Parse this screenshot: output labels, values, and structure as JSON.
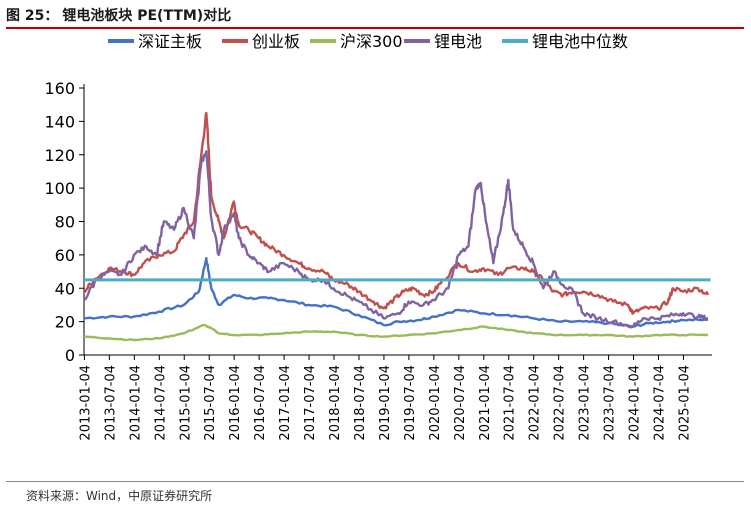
{
  "header": {
    "figure_number": "图 25：",
    "title": "锂电池板块 PE(TTM)对比"
  },
  "footer": {
    "source": "资料来源：Wind，中原证券研究所"
  },
  "chart_data": {
    "type": "line",
    "title": "锂电池板块 PE(TTM)对比",
    "xlabel": "",
    "ylabel": "",
    "ylim": [
      0,
      160
    ],
    "yticks": [
      0,
      20,
      40,
      60,
      80,
      100,
      120,
      140,
      160
    ],
    "x_range": [
      "2013-01-04",
      "2025-07-31"
    ],
    "xtick_labels": [
      "2013-01-04",
      "2013-07-04",
      "2014-01-04",
      "2014-07-04",
      "2015-01-04",
      "2015-07-04",
      "2016-01-04",
      "2016-07-04",
      "2017-01-04",
      "2017-07-04",
      "2018-01-04",
      "2018-07-04",
      "2019-01-04",
      "2019-07-04",
      "2020-01-04",
      "2020-07-04",
      "2021-01-04",
      "2021-07-04",
      "2022-01-04",
      "2022-07-04",
      "2023-01-04",
      "2023-07-04",
      "2024-01-04",
      "2024-07-04",
      "2025-01-04"
    ],
    "legend_position": "top",
    "series": [
      {
        "name": "深证主板",
        "color": "#4472c4",
        "points": [
          [
            2013.0,
            22
          ],
          [
            2013.5,
            23
          ],
          [
            2014.0,
            23
          ],
          [
            2014.5,
            26
          ],
          [
            2015.0,
            30
          ],
          [
            2015.3,
            38
          ],
          [
            2015.45,
            58
          ],
          [
            2015.55,
            40
          ],
          [
            2015.7,
            30
          ],
          [
            2016.0,
            36
          ],
          [
            2016.3,
            34
          ],
          [
            2016.7,
            34
          ],
          [
            2017.0,
            33
          ],
          [
            2017.5,
            30
          ],
          [
            2018.0,
            29
          ],
          [
            2018.5,
            24
          ],
          [
            2019.0,
            18
          ],
          [
            2019.3,
            20
          ],
          [
            2019.7,
            21
          ],
          [
            2020.0,
            23
          ],
          [
            2020.5,
            27
          ],
          [
            2021.0,
            25
          ],
          [
            2021.5,
            24
          ],
          [
            2022.0,
            22
          ],
          [
            2022.5,
            20
          ],
          [
            2023.0,
            20
          ],
          [
            2023.5,
            19
          ],
          [
            2024.0,
            17
          ],
          [
            2024.3,
            19
          ],
          [
            2024.7,
            20
          ],
          [
            2025.0,
            21
          ],
          [
            2025.5,
            21
          ]
        ]
      },
      {
        "name": "创业板",
        "color": "#c0504d",
        "points": [
          [
            2013.0,
            38
          ],
          [
            2013.2,
            45
          ],
          [
            2013.5,
            52
          ],
          [
            2013.8,
            50
          ],
          [
            2014.0,
            48
          ],
          [
            2014.2,
            55
          ],
          [
            2014.5,
            60
          ],
          [
            2014.8,
            62
          ],
          [
            2015.0,
            72
          ],
          [
            2015.2,
            80
          ],
          [
            2015.35,
            120
          ],
          [
            2015.45,
            145
          ],
          [
            2015.55,
            95
          ],
          [
            2015.7,
            80
          ],
          [
            2015.8,
            70
          ],
          [
            2016.0,
            92
          ],
          [
            2016.1,
            78
          ],
          [
            2016.3,
            75
          ],
          [
            2016.5,
            70
          ],
          [
            2016.7,
            65
          ],
          [
            2017.0,
            60
          ],
          [
            2017.3,
            55
          ],
          [
            2017.5,
            52
          ],
          [
            2017.8,
            50
          ],
          [
            2018.0,
            45
          ],
          [
            2018.3,
            42
          ],
          [
            2018.5,
            38
          ],
          [
            2018.8,
            32
          ],
          [
            2019.0,
            28
          ],
          [
            2019.2,
            33
          ],
          [
            2019.4,
            38
          ],
          [
            2019.6,
            40
          ],
          [
            2019.8,
            36
          ],
          [
            2020.0,
            38
          ],
          [
            2020.2,
            45
          ],
          [
            2020.5,
            55
          ],
          [
            2020.8,
            50
          ],
          [
            2021.0,
            52
          ],
          [
            2021.3,
            48
          ],
          [
            2021.5,
            52
          ],
          [
            2021.8,
            52
          ],
          [
            2022.0,
            50
          ],
          [
            2022.2,
            45
          ],
          [
            2022.4,
            38
          ],
          [
            2022.6,
            36
          ],
          [
            2022.8,
            38
          ],
          [
            2023.0,
            38
          ],
          [
            2023.3,
            36
          ],
          [
            2023.6,
            32
          ],
          [
            2023.9,
            30
          ],
          [
            2024.0,
            25
          ],
          [
            2024.2,
            28
          ],
          [
            2024.5,
            28
          ],
          [
            2024.7,
            32
          ],
          [
            2024.8,
            40
          ],
          [
            2025.0,
            38
          ],
          [
            2025.3,
            40
          ],
          [
            2025.5,
            36
          ]
        ]
      },
      {
        "name": "沪深300",
        "color": "#9bbb59",
        "points": [
          [
            2013.0,
            11
          ],
          [
            2013.5,
            10
          ],
          [
            2014.0,
            9
          ],
          [
            2014.5,
            10
          ],
          [
            2015.0,
            13
          ],
          [
            2015.4,
            18
          ],
          [
            2015.55,
            16
          ],
          [
            2015.7,
            13
          ],
          [
            2016.0,
            12
          ],
          [
            2016.5,
            12
          ],
          [
            2017.0,
            13
          ],
          [
            2017.5,
            14
          ],
          [
            2018.0,
            14
          ],
          [
            2018.5,
            12
          ],
          [
            2019.0,
            11
          ],
          [
            2019.5,
            12
          ],
          [
            2020.0,
            13
          ],
          [
            2020.5,
            15
          ],
          [
            2021.0,
            17
          ],
          [
            2021.5,
            15
          ],
          [
            2022.0,
            13
          ],
          [
            2022.5,
            12
          ],
          [
            2023.0,
            12
          ],
          [
            2023.5,
            12
          ],
          [
            2024.0,
            11
          ],
          [
            2024.5,
            12
          ],
          [
            2025.0,
            12
          ],
          [
            2025.5,
            12
          ]
        ]
      },
      {
        "name": "锂电池",
        "color": "#8064a2",
        "points": [
          [
            2013.0,
            33
          ],
          [
            2013.25,
            45
          ],
          [
            2013.5,
            50
          ],
          [
            2013.75,
            48
          ],
          [
            2014.0,
            60
          ],
          [
            2014.25,
            65
          ],
          [
            2014.45,
            60
          ],
          [
            2014.6,
            80
          ],
          [
            2014.8,
            75
          ],
          [
            2015.0,
            88
          ],
          [
            2015.2,
            70
          ],
          [
            2015.35,
            115
          ],
          [
            2015.45,
            122
          ],
          [
            2015.55,
            82
          ],
          [
            2015.7,
            60
          ],
          [
            2015.8,
            75
          ],
          [
            2016.0,
            85
          ],
          [
            2016.1,
            70
          ],
          [
            2016.3,
            60
          ],
          [
            2016.5,
            55
          ],
          [
            2016.7,
            50
          ],
          [
            2017.0,
            55
          ],
          [
            2017.3,
            50
          ],
          [
            2017.5,
            45
          ],
          [
            2017.8,
            45
          ],
          [
            2018.0,
            40
          ],
          [
            2018.3,
            35
          ],
          [
            2018.6,
            30
          ],
          [
            2019.0,
            22
          ],
          [
            2019.3,
            25
          ],
          [
            2019.5,
            32
          ],
          [
            2019.8,
            30
          ],
          [
            2020.0,
            33
          ],
          [
            2020.3,
            40
          ],
          [
            2020.5,
            60
          ],
          [
            2020.7,
            65
          ],
          [
            2020.85,
            100
          ],
          [
            2020.95,
            103
          ],
          [
            2021.05,
            80
          ],
          [
            2021.2,
            55
          ],
          [
            2021.4,
            85
          ],
          [
            2021.5,
            105
          ],
          [
            2021.6,
            75
          ],
          [
            2021.8,
            65
          ],
          [
            2022.0,
            55
          ],
          [
            2022.2,
            40
          ],
          [
            2022.4,
            50
          ],
          [
            2022.6,
            42
          ],
          [
            2022.8,
            38
          ],
          [
            2023.0,
            25
          ],
          [
            2023.3,
            22
          ],
          [
            2023.6,
            20
          ],
          [
            2024.0,
            17
          ],
          [
            2024.2,
            22
          ],
          [
            2024.5,
            22
          ],
          [
            2024.8,
            24
          ],
          [
            2025.0,
            25
          ],
          [
            2025.3,
            23
          ],
          [
            2025.5,
            22
          ]
        ]
      },
      {
        "name": "锂电池中位数",
        "color": "#4bacc6",
        "points": [
          [
            2013.0,
            45
          ],
          [
            2025.55,
            45
          ]
        ]
      }
    ]
  }
}
